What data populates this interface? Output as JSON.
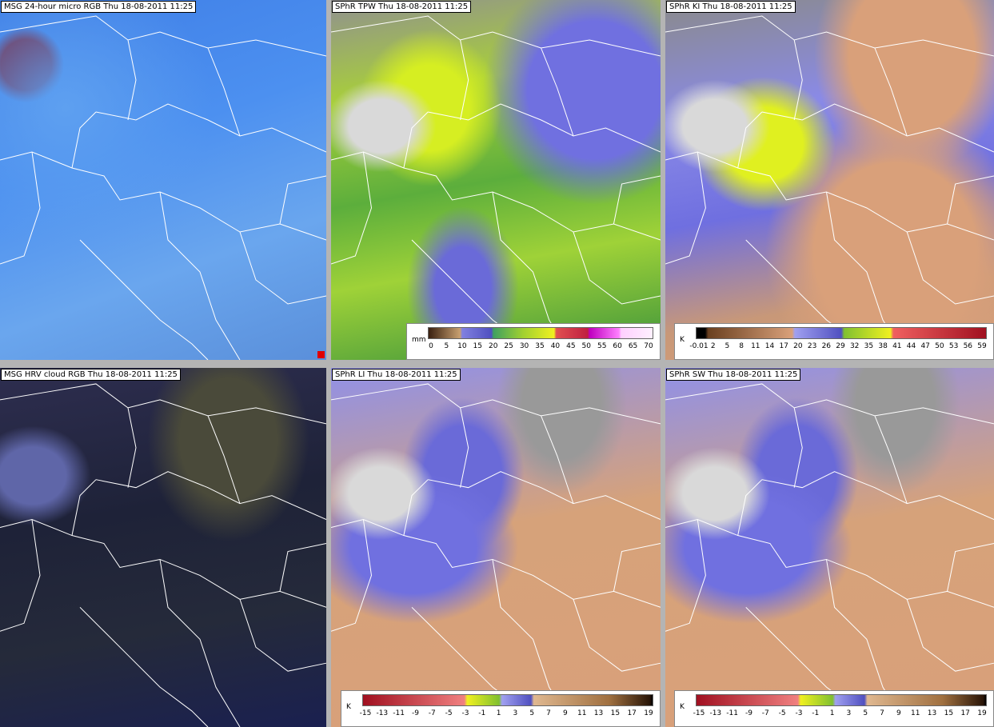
{
  "panels": [
    {
      "title": "MSG 24-hour micro RGB Thu 18-08-2011 11:25"
    },
    {
      "title": "SPhR TPW Thu 18-08-2011 11:25",
      "legend": {
        "unit": "mm",
        "ticks": [
          0,
          5,
          10,
          15,
          20,
          25,
          30,
          35,
          40,
          45,
          50,
          55,
          60,
          65,
          70
        ]
      }
    },
    {
      "title": "SPhR KI Thu 18-08-2011 11:25",
      "legend": {
        "unit": "K",
        "ticks": [
          -0.01,
          2,
          5,
          8,
          11,
          14,
          17,
          20,
          23,
          26,
          29,
          32,
          35,
          38,
          41,
          44,
          47,
          50,
          53,
          56,
          59
        ]
      }
    },
    {
      "title": "MSG HRV cloud RGB Thu 18-08-2011 11:25"
    },
    {
      "title": "SPhR LI Thu 18-08-2011 11:25",
      "legend": {
        "unit": "K",
        "ticks": [
          -15,
          -13,
          -11,
          -9,
          -7,
          -5,
          -3,
          -1,
          1,
          3,
          5,
          7,
          9,
          11,
          13,
          15,
          17,
          19
        ]
      }
    },
    {
      "title": "SPhR SW Thu 18-08-2011 11:25",
      "legend": {
        "unit": "K",
        "ticks": [
          -15,
          -13,
          -11,
          -9,
          -7,
          -5,
          -3,
          -1,
          1,
          3,
          5,
          7,
          9,
          11,
          13,
          15,
          17,
          19
        ]
      }
    }
  ]
}
